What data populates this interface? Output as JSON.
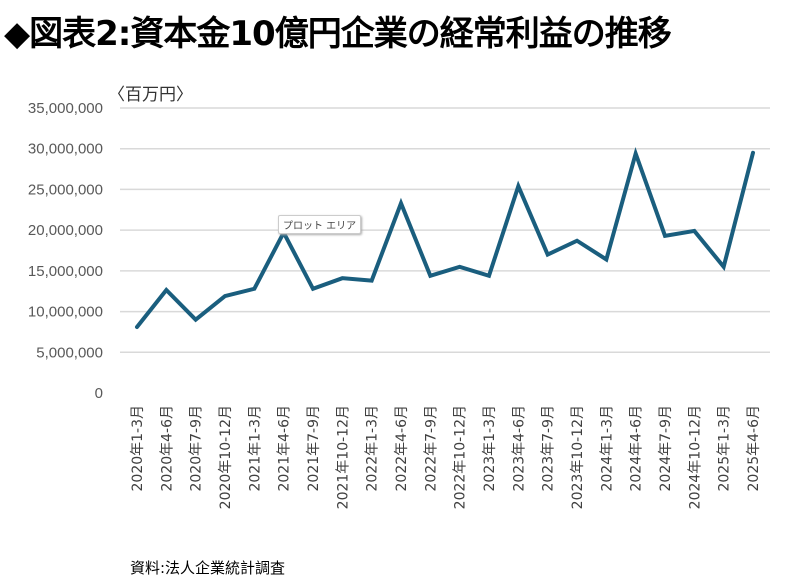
{
  "title": "◆図表2:資本金10億円企業の経常利益の推移",
  "unit_label": "〈百万円〉",
  "source": "資料:法人企業統計調査",
  "tooltip": "プロット エリア",
  "colors": {
    "line": "#1a5e7e",
    "grid": "#d9d9d9"
  },
  "chart_data": {
    "type": "line",
    "title": "◆図表2:資本金10億円企業の経常利益の推移",
    "ylabel": "〈百万円〉",
    "ylim": [
      0,
      35000000
    ],
    "yticks": [
      0,
      5000000,
      10000000,
      15000000,
      20000000,
      25000000,
      30000000,
      35000000
    ],
    "ytick_labels": [
      "0",
      "5,000,000",
      "10,000,000",
      "15,000,000",
      "20,000,000",
      "25,000,000",
      "30,000,000",
      "35,000,000"
    ],
    "grid": true,
    "categories": [
      "2020年1-3月",
      "2020年4-6月",
      "2020年7-9月",
      "2020年10-12月",
      "2021年1-3月",
      "2021年4-6月",
      "2021年7-9月",
      "2021年10-12月",
      "2022年1-3月",
      "2022年4-6月",
      "2022年7-9月",
      "2022年10-12月",
      "2023年1-3月",
      "2023年4-6月",
      "2023年7-9月",
      "2023年10-12月",
      "2024年1-3月",
      "2024年4-6月",
      "2024年7-9月",
      "2024年10-12月",
      "2025年1-3月",
      "2025年4-6月"
    ],
    "series": [
      {
        "name": "経常利益",
        "values": [
          8100000,
          12650000,
          9000000,
          11900000,
          12800000,
          19700000,
          12800000,
          14100000,
          13800000,
          23300000,
          14400000,
          15500000,
          14400000,
          25400000,
          17000000,
          18700000,
          16400000,
          29400000,
          19300000,
          19900000,
          15500000,
          29500000
        ]
      }
    ]
  }
}
